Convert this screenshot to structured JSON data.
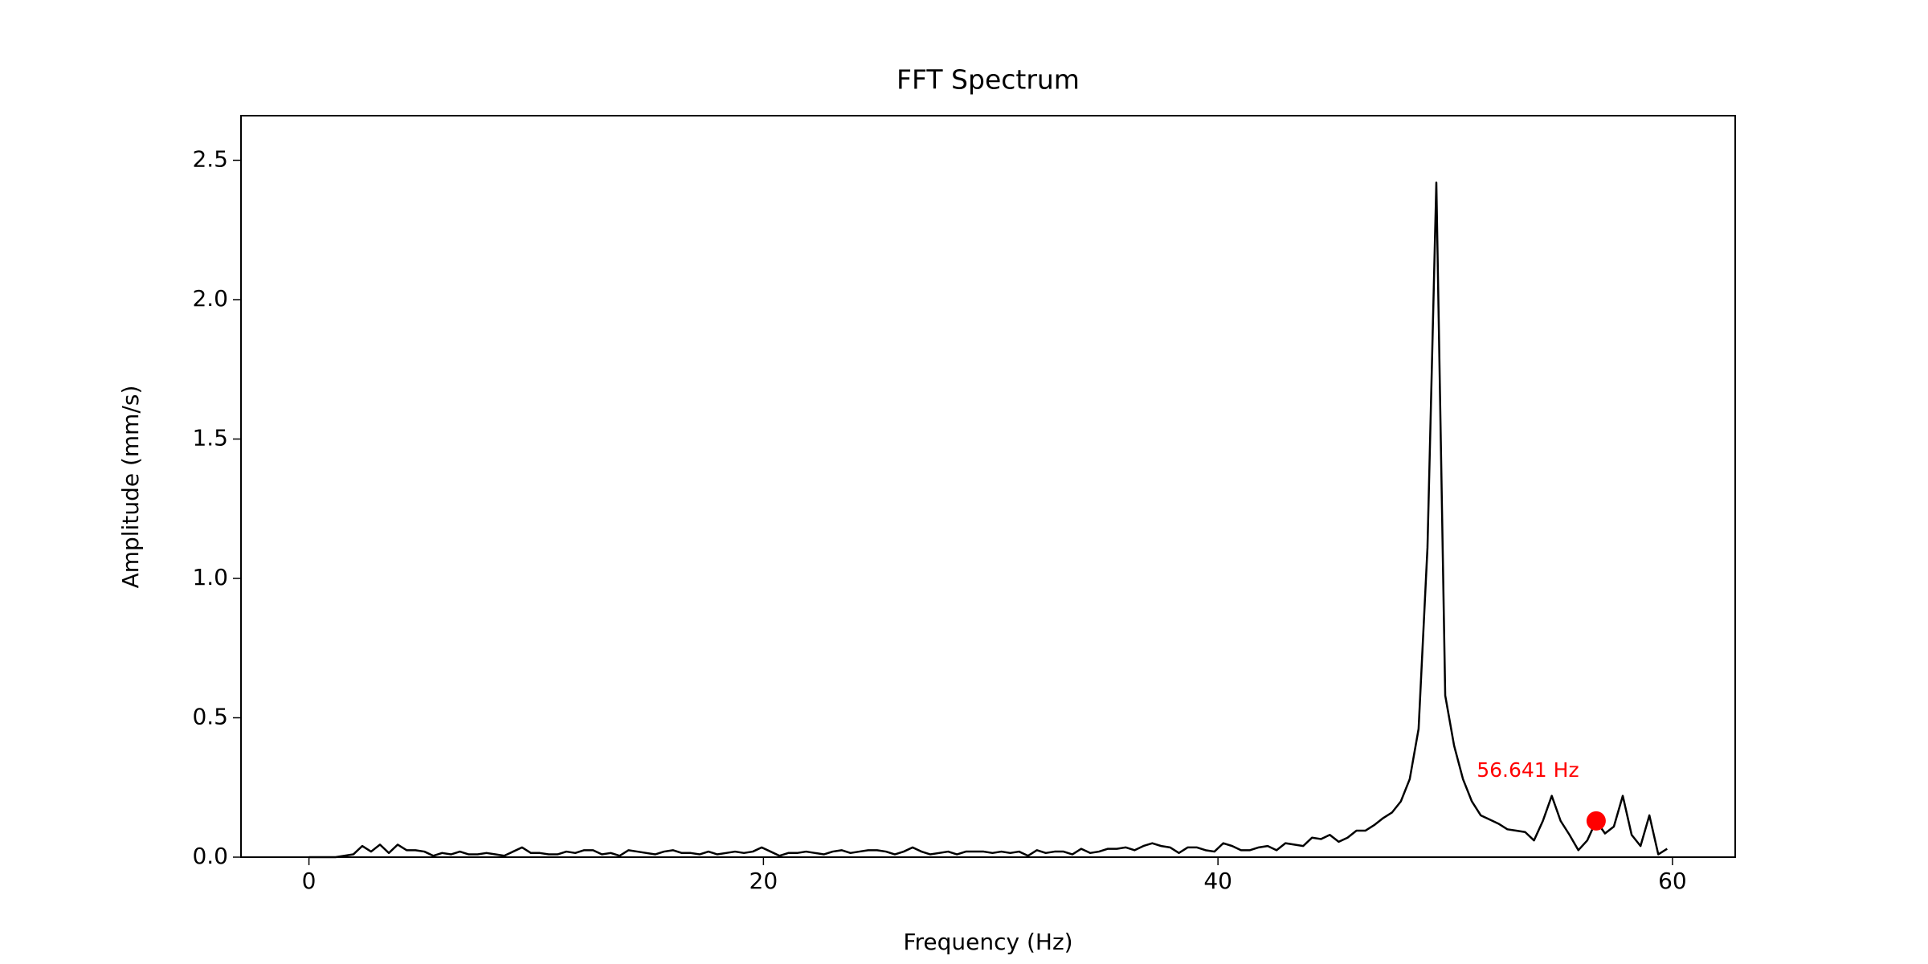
{
  "chart_data": {
    "type": "line",
    "title": "FFT Spectrum",
    "x_label": "Frequency (Hz)",
    "y_label": "Amplitude (mm/s)",
    "color": "#000000",
    "x": [
      0,
      0.391,
      0.781,
      1.172,
      1.563,
      1.953,
      2.344,
      2.734,
      3.125,
      3.516,
      3.906,
      4.297,
      4.688,
      5.078,
      5.469,
      5.859,
      6.25,
      6.641,
      7.031,
      7.422,
      7.813,
      8.203,
      8.594,
      8.984,
      9.375,
      9.766,
      10.156,
      10.547,
      10.938,
      11.328,
      11.719,
      12.109,
      12.5,
      12.891,
      13.281,
      13.672,
      14.063,
      14.453,
      14.844,
      15.234,
      15.625,
      16.016,
      16.406,
      16.797,
      17.188,
      17.578,
      17.969,
      18.359,
      18.75,
      19.141,
      19.531,
      19.922,
      20.313,
      20.703,
      21.094,
      21.484,
      21.875,
      22.266,
      22.656,
      23.047,
      23.438,
      23.828,
      24.219,
      24.609,
      25,
      25.391,
      25.781,
      26.172,
      26.563,
      26.953,
      27.344,
      27.734,
      28.125,
      28.516,
      28.906,
      29.297,
      29.688,
      30.078,
      30.469,
      30.859,
      31.25,
      31.641,
      32.031,
      32.422,
      32.813,
      33.203,
      33.594,
      33.984,
      34.375,
      34.766,
      35.156,
      35.547,
      35.938,
      36.328,
      36.719,
      37.109,
      37.5,
      37.891,
      38.281,
      38.672,
      39.063,
      39.453,
      39.844,
      40.234,
      40.625,
      41.016,
      41.406,
      41.797,
      42.188,
      42.578,
      42.969,
      43.359,
      43.75,
      44.141,
      44.531,
      44.922,
      45.313,
      45.703,
      46.094,
      46.484,
      46.875,
      47.266,
      47.656,
      48.047,
      48.438,
      48.828,
      49.219,
      49.609,
      50,
      50.391,
      50.781,
      51.172,
      51.563,
      51.953,
      52.344,
      52.734,
      53.125,
      53.516,
      53.906,
      54.297,
      54.688,
      55.078,
      55.469,
      55.859,
      56.25,
      56.641,
      57.031,
      57.422,
      57.813,
      58.203,
      58.594,
      58.984,
      59.375,
      59.766
    ],
    "values": [
      0,
      0,
      0,
      0,
      0.005,
      0.01,
      0.04,
      0.02,
      0.045,
      0.015,
      0.045,
      0.025,
      0.025,
      0.02,
      0.005,
      0.015,
      0.01,
      0.02,
      0.01,
      0.01,
      0.015,
      0.01,
      0.005,
      0.02,
      0.035,
      0.015,
      0.015,
      0.01,
      0.01,
      0.02,
      0.015,
      0.025,
      0.025,
      0.01,
      0.015,
      0.005,
      0.025,
      0.02,
      0.015,
      0.01,
      0.02,
      0.025,
      0.015,
      0.015,
      0.01,
      0.02,
      0.01,
      0.015,
      0.02,
      0.015,
      0.02,
      0.035,
      0.02,
      0.005,
      0.015,
      0.015,
      0.02,
      0.015,
      0.01,
      0.02,
      0.025,
      0.015,
      0.02,
      0.025,
      0.025,
      0.02,
      0.01,
      0.02,
      0.035,
      0.02,
      0.01,
      0.015,
      0.02,
      0.01,
      0.02,
      0.02,
      0.02,
      0.015,
      0.02,
      0.015,
      0.02,
      0.005,
      0.025,
      0.015,
      0.02,
      0.02,
      0.01,
      0.03,
      0.015,
      0.02,
      0.03,
      0.03,
      0.035,
      0.025,
      0.04,
      0.05,
      0.04,
      0.035,
      0.015,
      0.035,
      0.035,
      0.025,
      0.02,
      0.05,
      0.04,
      0.025,
      0.025,
      0.035,
      0.04,
      0.025,
      0.05,
      0.045,
      0.04,
      0.07,
      0.065,
      0.08,
      0.055,
      0.07,
      0.095,
      0.095,
      0.115,
      0.14,
      0.16,
      0.2,
      0.28,
      0.46,
      1.11,
      2.42,
      0.58,
      0.4,
      0.28,
      0.2,
      0.15,
      0.135,
      0.12,
      0.1,
      0.095,
      0.09,
      0.06,
      0.13,
      0.22,
      0.13,
      0.08,
      0.025,
      0.06,
      0.13,
      0.085,
      0.11,
      0.22,
      0.08,
      0.04,
      0.15,
      0.01,
      0.03
    ],
    "annotation": {
      "text": "56.641 Hz",
      "x": 56.641,
      "y": 0.13,
      "color": "#ff0000"
    },
    "xlim": [
      -2.99,
      62.76
    ],
    "ylim": [
      0,
      2.66
    ],
    "xticks": [
      0,
      20,
      40,
      60
    ],
    "yticks": [
      {
        "value": 0,
        "label": "0.0"
      },
      0.5,
      {
        "value": 1,
        "label": "1.0"
      },
      1.5,
      {
        "value": 2,
        "label": "2.0"
      },
      2.5
    ],
    "grid": false
  }
}
